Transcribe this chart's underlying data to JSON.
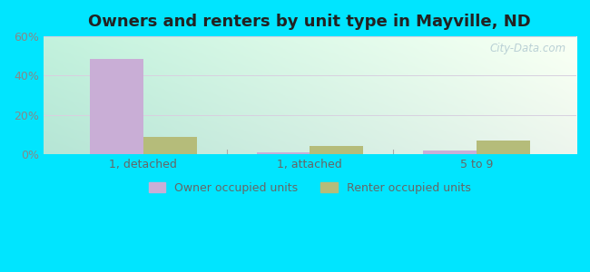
{
  "title": "Owners and renters by unit type in Mayville, ND",
  "categories": [
    "1, detached",
    "1, attached",
    "5 to 9"
  ],
  "owner_values": [
    48.5,
    1.2,
    2.0
  ],
  "renter_values": [
    9.0,
    4.2,
    7.0
  ],
  "owner_color": "#c9aed6",
  "renter_color": "#b5bc7a",
  "ylim": [
    0,
    60
  ],
  "yticks": [
    0,
    20,
    40,
    60
  ],
  "ytick_labels": [
    "0%",
    "20%",
    "40%",
    "60%"
  ],
  "bar_width": 0.32,
  "background_outer": "#00e5ff",
  "bg_left": "#b8e8d8",
  "bg_right": "#f0f8f0",
  "bg_top": "#e8f8f4",
  "bg_bottom": "#dff0df",
  "grid_color": "#d8d0e0",
  "title_fontsize": 13,
  "axis_fontsize": 9,
  "legend_fontsize": 9,
  "watermark_text": "City-Data.com"
}
